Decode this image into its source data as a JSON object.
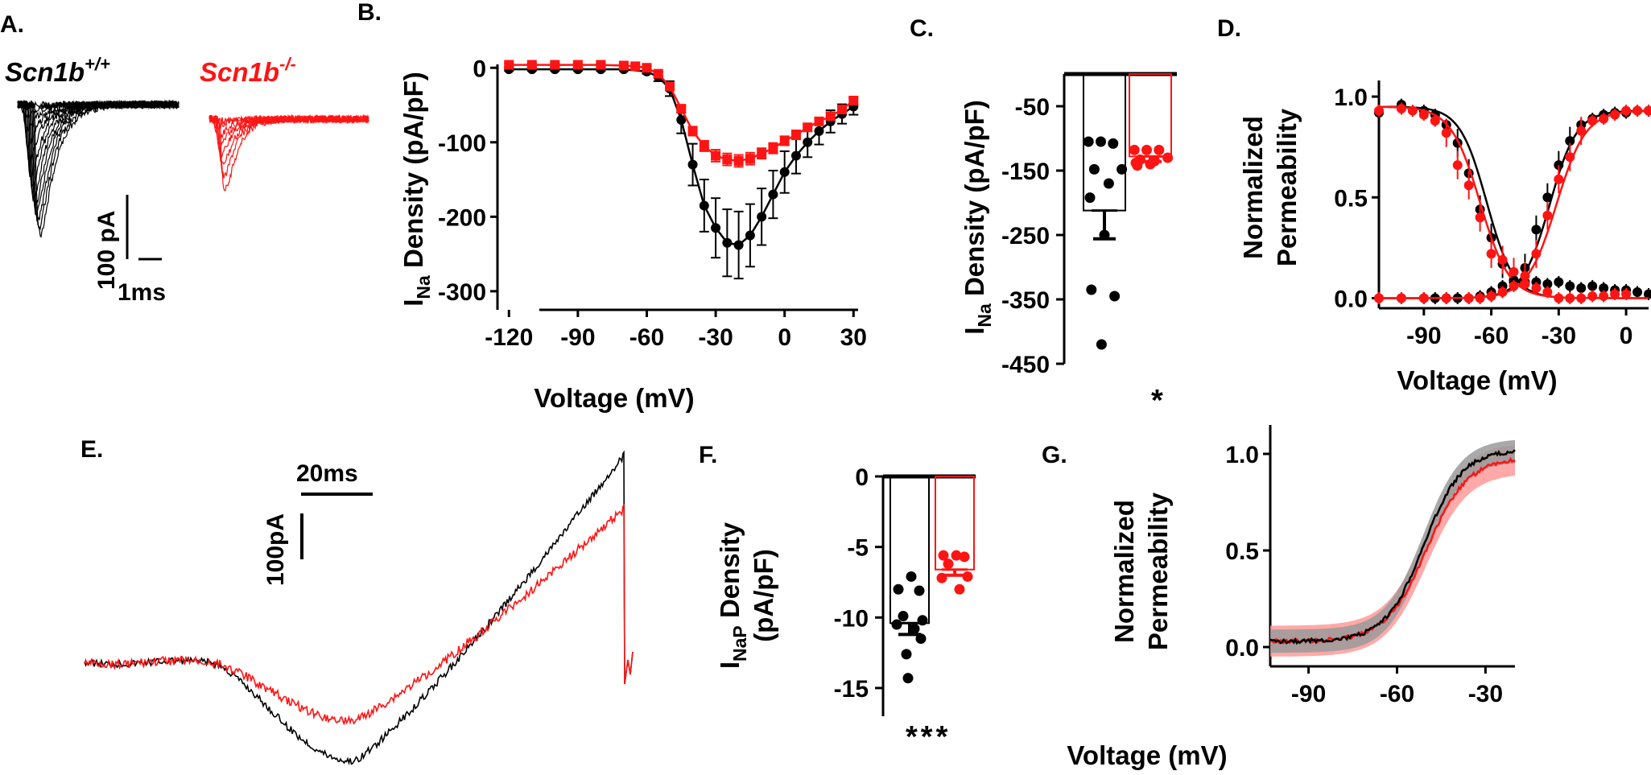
{
  "colors": {
    "wt": "#000000",
    "ko": "#ff1414"
  },
  "panels": {
    "A": {
      "letter": "A.",
      "wt_label": "Scn1b",
      "wt_sup": "+/+",
      "ko_label": "Scn1b",
      "ko_sup": "-/-",
      "scale_y": "100 pA",
      "scale_x": "1ms"
    },
    "B": {
      "letter": "B."
    },
    "C": {
      "letter": "C.",
      "star": "*"
    },
    "D": {
      "letter": "D."
    },
    "E": {
      "letter": "E.",
      "scale_y": "100pA",
      "scale_x": "20ms"
    },
    "F": {
      "letter": "F.",
      "star": "***"
    },
    "G": {
      "letter": "G."
    }
  },
  "chart_data": [
    {
      "panel": "B",
      "type": "line",
      "xlabel": "Voltage (mV)",
      "ylabel_main": "I",
      "ylabel_sub": "Na",
      "ylabel_rest": " Density (pA/pF)",
      "xlim": [
        -125,
        32
      ],
      "ylim": [
        -325,
        10
      ],
      "xticks": [
        -120,
        -90,
        -60,
        -30,
        0,
        30
      ],
      "yticks": [
        0,
        -100,
        -200,
        -300
      ],
      "series": [
        {
          "id": "wt",
          "marker": "circle",
          "x": [
            -120,
            -110,
            -100,
            -90,
            -80,
            -70,
            -60,
            -55,
            -50,
            -45,
            -40,
            -35,
            -30,
            -25,
            -20,
            -15,
            -10,
            -5,
            0,
            5,
            10,
            15,
            20,
            25,
            30
          ],
          "y": [
            -2,
            -2,
            -2,
            -2,
            -2,
            -2,
            -5,
            -12,
            -28,
            -70,
            -130,
            -185,
            -215,
            -235,
            -238,
            -225,
            -200,
            -170,
            -140,
            -118,
            -100,
            -85,
            -72,
            -62,
            -52
          ],
          "err": [
            2,
            2,
            2,
            2,
            2,
            2,
            3,
            6,
            10,
            18,
            28,
            35,
            40,
            45,
            45,
            42,
            38,
            32,
            28,
            24,
            20,
            18,
            15,
            13,
            11
          ]
        },
        {
          "id": "ko",
          "marker": "square",
          "x": [
            -120,
            -110,
            -100,
            -90,
            -80,
            -70,
            -65,
            -60,
            -55,
            -50,
            -45,
            -40,
            -35,
            -30,
            -25,
            -20,
            -15,
            -10,
            -5,
            0,
            5,
            10,
            15,
            20,
            25,
            30
          ],
          "y": [
            4,
            4,
            4,
            4,
            4,
            3,
            2,
            0,
            -8,
            -25,
            -55,
            -85,
            -105,
            -118,
            -123,
            -125,
            -122,
            -115,
            -108,
            -98,
            -90,
            -80,
            -72,
            -65,
            -56,
            -44
          ],
          "err": [
            2,
            2,
            2,
            2,
            2,
            2,
            2,
            2,
            3,
            4,
            5,
            6,
            7,
            8,
            8,
            8,
            8,
            7,
            7,
            6,
            6,
            5,
            5,
            5,
            5,
            5
          ]
        }
      ]
    },
    {
      "panel": "C",
      "type": "bar",
      "ylabel_main": "I",
      "ylabel_sub": "Na",
      "ylabel_rest": " Density (pA/pF)",
      "ylim": [
        -450,
        0
      ],
      "yticks": [
        -50,
        -150,
        -250,
        -350,
        -450
      ],
      "series": [
        {
          "id": "wt",
          "mean": -212,
          "sem": 44,
          "points": [
            -105,
            -105,
            -108,
            -148,
            -148,
            -170,
            -192,
            -250,
            -335,
            -345,
            -420
          ]
        },
        {
          "id": "ko",
          "mean": -128,
          "sem": 8,
          "points": [
            -118,
            -118,
            -118,
            -130,
            -133,
            -135,
            -138,
            -140,
            -142
          ]
        }
      ]
    },
    {
      "panel": "D",
      "type": "line",
      "xlabel": "Voltage  (mV)",
      "ylabel_line1": "Normalized",
      "ylabel_line2": "Permeability",
      "xlim": [
        -110,
        10
      ],
      "ylim": [
        -0.05,
        1.08
      ],
      "xticks": [
        -90,
        -60,
        -30,
        0
      ],
      "yticks": [
        0.0,
        0.5,
        1.0
      ],
      "series": [
        {
          "id": "wt_inact",
          "group": "wt",
          "v_half": -62,
          "k": 6.0,
          "dir": "inact",
          "x": [
            -110,
            -100,
            -90,
            -85,
            -80,
            -75,
            -70,
            -65,
            -60,
            -55,
            -50,
            -45,
            -40,
            -35,
            -30,
            -25,
            -20,
            -15,
            -10,
            -5,
            0,
            5,
            10
          ],
          "y": [
            0.92,
            0.96,
            0.93,
            0.91,
            0.86,
            0.77,
            0.62,
            0.44,
            0.3,
            0.17,
            0.09,
            0.08,
            0.08,
            0.07,
            0.08,
            0.06,
            0.05,
            0.06,
            0.05,
            0.04,
            0.04,
            0.03,
            0.02
          ]
        },
        {
          "id": "ko_inact",
          "group": "ko",
          "v_half": -65,
          "k": 6.5,
          "dir": "inact",
          "x": [
            -110,
            -100,
            -95,
            -90,
            -85,
            -80,
            -75,
            -70,
            -65,
            -60,
            -55,
            -50,
            -45,
            -40,
            -35,
            -30,
            -25,
            -20,
            -15,
            -10,
            -5,
            0
          ],
          "y": [
            0.93,
            0.94,
            0.93,
            0.91,
            0.88,
            0.82,
            0.66,
            0.56,
            0.4,
            0.22,
            0.19,
            0.13,
            0.07,
            0.05,
            0.03,
            0.0,
            0.0,
            0.0,
            0.01,
            0.01,
            0.02,
            0.02
          ]
        },
        {
          "id": "wt_act",
          "group": "wt",
          "v_half": -34,
          "k": 6.0,
          "dir": "act",
          "x": [
            -110,
            -100,
            -90,
            -85,
            -80,
            -75,
            -70,
            -65,
            -60,
            -55,
            -50,
            -45,
            -40,
            -35,
            -30,
            -25,
            -20,
            -15,
            -10,
            -5,
            0,
            5,
            10
          ],
          "y": [
            0.0,
            0.0,
            0.0,
            0.0,
            0.0,
            0.0,
            0.0,
            0.01,
            0.03,
            0.06,
            0.08,
            0.15,
            0.34,
            0.5,
            0.66,
            0.78,
            0.86,
            0.89,
            0.91,
            0.92,
            0.92,
            0.93,
            0.93
          ]
        },
        {
          "id": "ko_act",
          "group": "ko",
          "v_half": -31,
          "k": 6.5,
          "dir": "act",
          "x": [
            -110,
            -100,
            -90,
            -80,
            -70,
            -65,
            -60,
            -55,
            -50,
            -45,
            -40,
            -35,
            -30,
            -25,
            -20,
            -15,
            -10,
            -5,
            0,
            5,
            10
          ],
          "y": [
            0.0,
            0.0,
            0.0,
            0.0,
            0.0,
            0.0,
            0.01,
            0.03,
            0.06,
            0.11,
            0.22,
            0.41,
            0.59,
            0.7,
            0.83,
            0.88,
            0.89,
            0.91,
            0.93,
            0.93,
            0.93
          ]
        }
      ]
    },
    {
      "panel": "E",
      "type": "line",
      "series": [
        {
          "id": "wt"
        },
        {
          "id": "ko"
        }
      ]
    },
    {
      "panel": "F",
      "type": "bar",
      "ylabel_main": "I",
      "ylabel_sub": "NaP",
      "ylabel_rest": " Density",
      "ylabel_line2": "(pA/pF)",
      "ylim": [
        -17,
        0
      ],
      "yticks": [
        0,
        -5,
        -10,
        -15
      ],
      "series": [
        {
          "id": "wt",
          "mean": -10.4,
          "sem": 0.8,
          "points": [
            -7.1,
            -8.0,
            -8.1,
            -9.9,
            -10.2,
            -10.5,
            -10.8,
            -11.5,
            -12.6,
            -14.3
          ]
        },
        {
          "id": "ko",
          "mean": -6.6,
          "sem": 0.4,
          "points": [
            -5.6,
            -5.6,
            -5.7,
            -6.2,
            -7.1,
            -7.2,
            -8.0
          ]
        }
      ]
    },
    {
      "panel": "G",
      "type": "area",
      "xlabel": "Voltage (mV)",
      "ylabel_line1": "Normalized",
      "ylabel_line2": "Permeability",
      "xlim": [
        -103,
        -20
      ],
      "ylim": [
        -0.1,
        1.15
      ],
      "xticks": [
        -90,
        -60,
        -30
      ],
      "yticks": [
        0.0,
        0.5,
        1.0
      ],
      "series": [
        {
          "id": "wt",
          "v_half": -51,
          "k": 6.5,
          "top": 1.02,
          "band": 0.06
        },
        {
          "id": "ko",
          "v_half": -50,
          "k": 7.0,
          "top": 0.98,
          "band": 0.08
        }
      ]
    }
  ]
}
